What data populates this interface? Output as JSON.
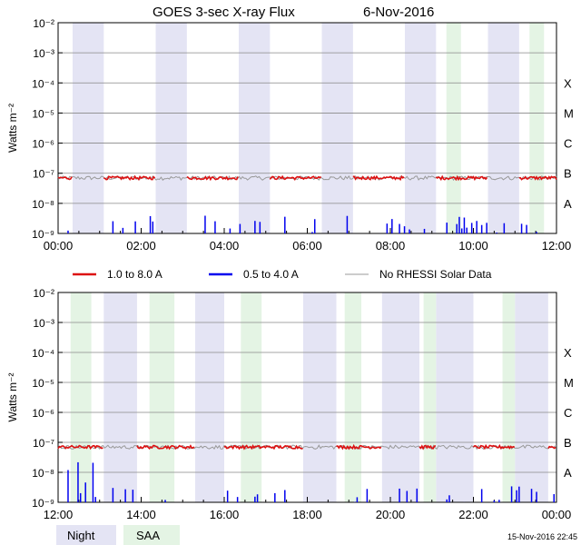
{
  "title": "GOES 3-sec X-ray Flux",
  "date": "6-Nov-2016",
  "ylabel": "Watts m⁻²",
  "ytick_labels": [
    "10⁻²",
    "10⁻³",
    "10⁻⁴",
    "10⁻⁵",
    "10⁻⁶",
    "10⁻⁷",
    "10⁻⁸",
    "10⁻⁹"
  ],
  "class_labels": [
    "X",
    "M",
    "C",
    "B",
    "A"
  ],
  "legend": {
    "red": "1.0 to 8.0 A",
    "blue": "0.5 to 4.0 A",
    "gray": "No RHESSI Solar Data"
  },
  "bottom_legend": {
    "night": "Night",
    "saa": "SAA"
  },
  "timestamp": "15-Nov-2016 22:45",
  "colors": {
    "red": "#dd1111",
    "blue": "#0000ee",
    "gray": "#999999",
    "night": "#e4e4f4",
    "saa": "#e4f4e4",
    "grid": "#888888"
  },
  "chart_data": [
    {
      "type": "line",
      "panel": "top",
      "x_ticks": [
        "00:00",
        "02:00",
        "04:00",
        "06:00",
        "08:00",
        "10:00",
        "12:00"
      ],
      "xlim_hours": [
        0,
        12
      ],
      "ylim": [
        1e-09,
        0.01
      ],
      "yscale": "log",
      "series": [
        {
          "name": "1.0 to 8.0 A",
          "baseline": 7e-08
        },
        {
          "name": "0.5 to 4.0 A",
          "baseline": 1e-09
        },
        {
          "name": "No RHESSI Solar Data",
          "baseline": 7e-08
        }
      ],
      "night_hours": [
        [
          0.35,
          1.1
        ],
        [
          2.35,
          3.1
        ],
        [
          4.35,
          5.1
        ],
        [
          6.35,
          7.1
        ],
        [
          8.35,
          9.1
        ],
        [
          10.35,
          11.1
        ]
      ],
      "saa_hours": [
        [
          9.35,
          9.7
        ],
        [
          11.35,
          11.7
        ]
      ]
    },
    {
      "type": "line",
      "panel": "bottom",
      "x_ticks": [
        "12:00",
        "14:00",
        "16:00",
        "18:00",
        "20:00",
        "22:00",
        "00:00"
      ],
      "xlim_hours": [
        12,
        24
      ],
      "ylim": [
        1e-09,
        0.01
      ],
      "yscale": "log",
      "series": [
        {
          "name": "1.0 to 8.0 A",
          "baseline": 7e-08
        },
        {
          "name": "0.5 to 4.0 A",
          "baseline": 1e-09
        },
        {
          "name": "No RHESSI Solar Data",
          "baseline": 7e-08
        }
      ],
      "night_hours": [
        [
          13.1,
          13.9
        ],
        [
          15.3,
          16.0
        ],
        [
          17.9,
          18.7
        ],
        [
          19.8,
          20.7
        ],
        [
          21.1,
          22.0
        ],
        [
          23.0,
          23.8
        ]
      ],
      "saa_hours": [
        [
          12.3,
          12.8
        ],
        [
          14.2,
          14.8
        ],
        [
          16.4,
          16.9
        ],
        [
          18.9,
          19.3
        ],
        [
          20.8,
          21.1
        ],
        [
          22.7,
          23.0
        ]
      ]
    }
  ]
}
